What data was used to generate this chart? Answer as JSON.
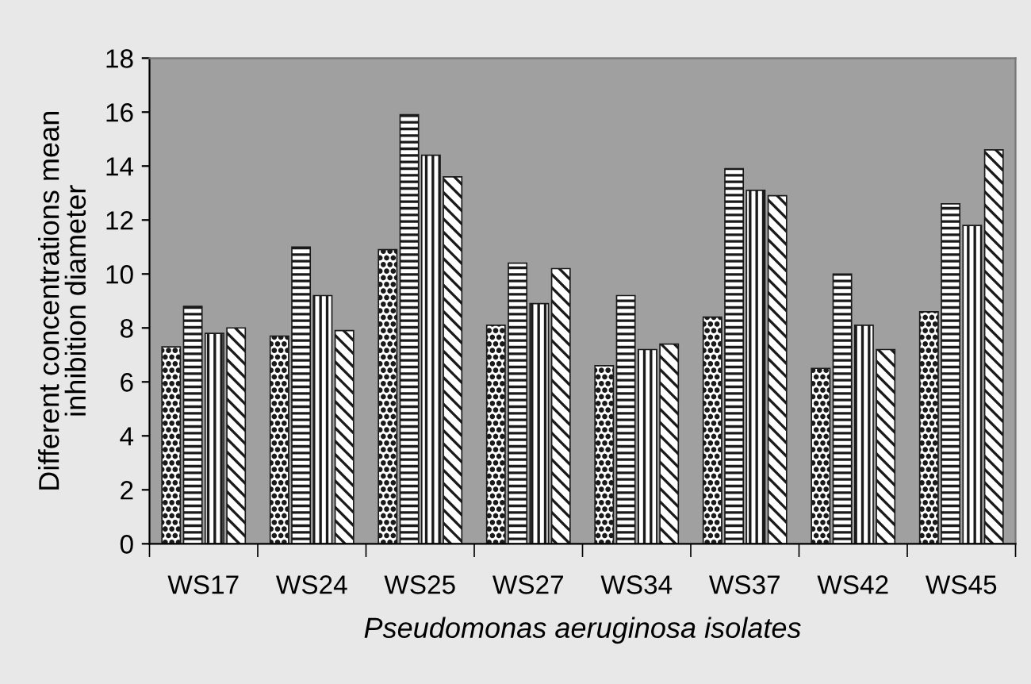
{
  "chart_data": {
    "type": "bar",
    "xlabel": "Pseudomonas aeruginosa isolates",
    "ylabel": "Different concentrations mean\ninhibition diameter",
    "categories": [
      "WS17",
      "WS24",
      "WS25",
      "WS27",
      "WS34",
      "WS37",
      "WS42",
      "WS45"
    ],
    "series": [
      {
        "color": "#1a1a1a",
        "values": [
          7.3,
          7.7,
          10.9,
          8.1,
          6.6,
          8.4,
          6.5,
          8.6
        ]
      },
      {
        "color": "#1a1a1a",
        "values": [
          8.8,
          11.0,
          15.9,
          10.4,
          9.2,
          13.9,
          10.0,
          12.6
        ]
      },
      {
        "color": "#1a1a1a",
        "values": [
          7.8,
          9.2,
          14.4,
          8.9,
          7.2,
          13.1,
          8.1,
          11.8
        ]
      },
      {
        "color": "#1a1a1a",
        "values": [
          8.0,
          7.9,
          13.6,
          10.2,
          7.4,
          12.9,
          7.2,
          14.6
        ]
      }
    ],
    "ylim": [
      0,
      18
    ],
    "yticks": [
      0,
      2,
      4,
      6,
      8,
      10,
      12,
      14,
      16,
      18
    ],
    "grid": false
  }
}
